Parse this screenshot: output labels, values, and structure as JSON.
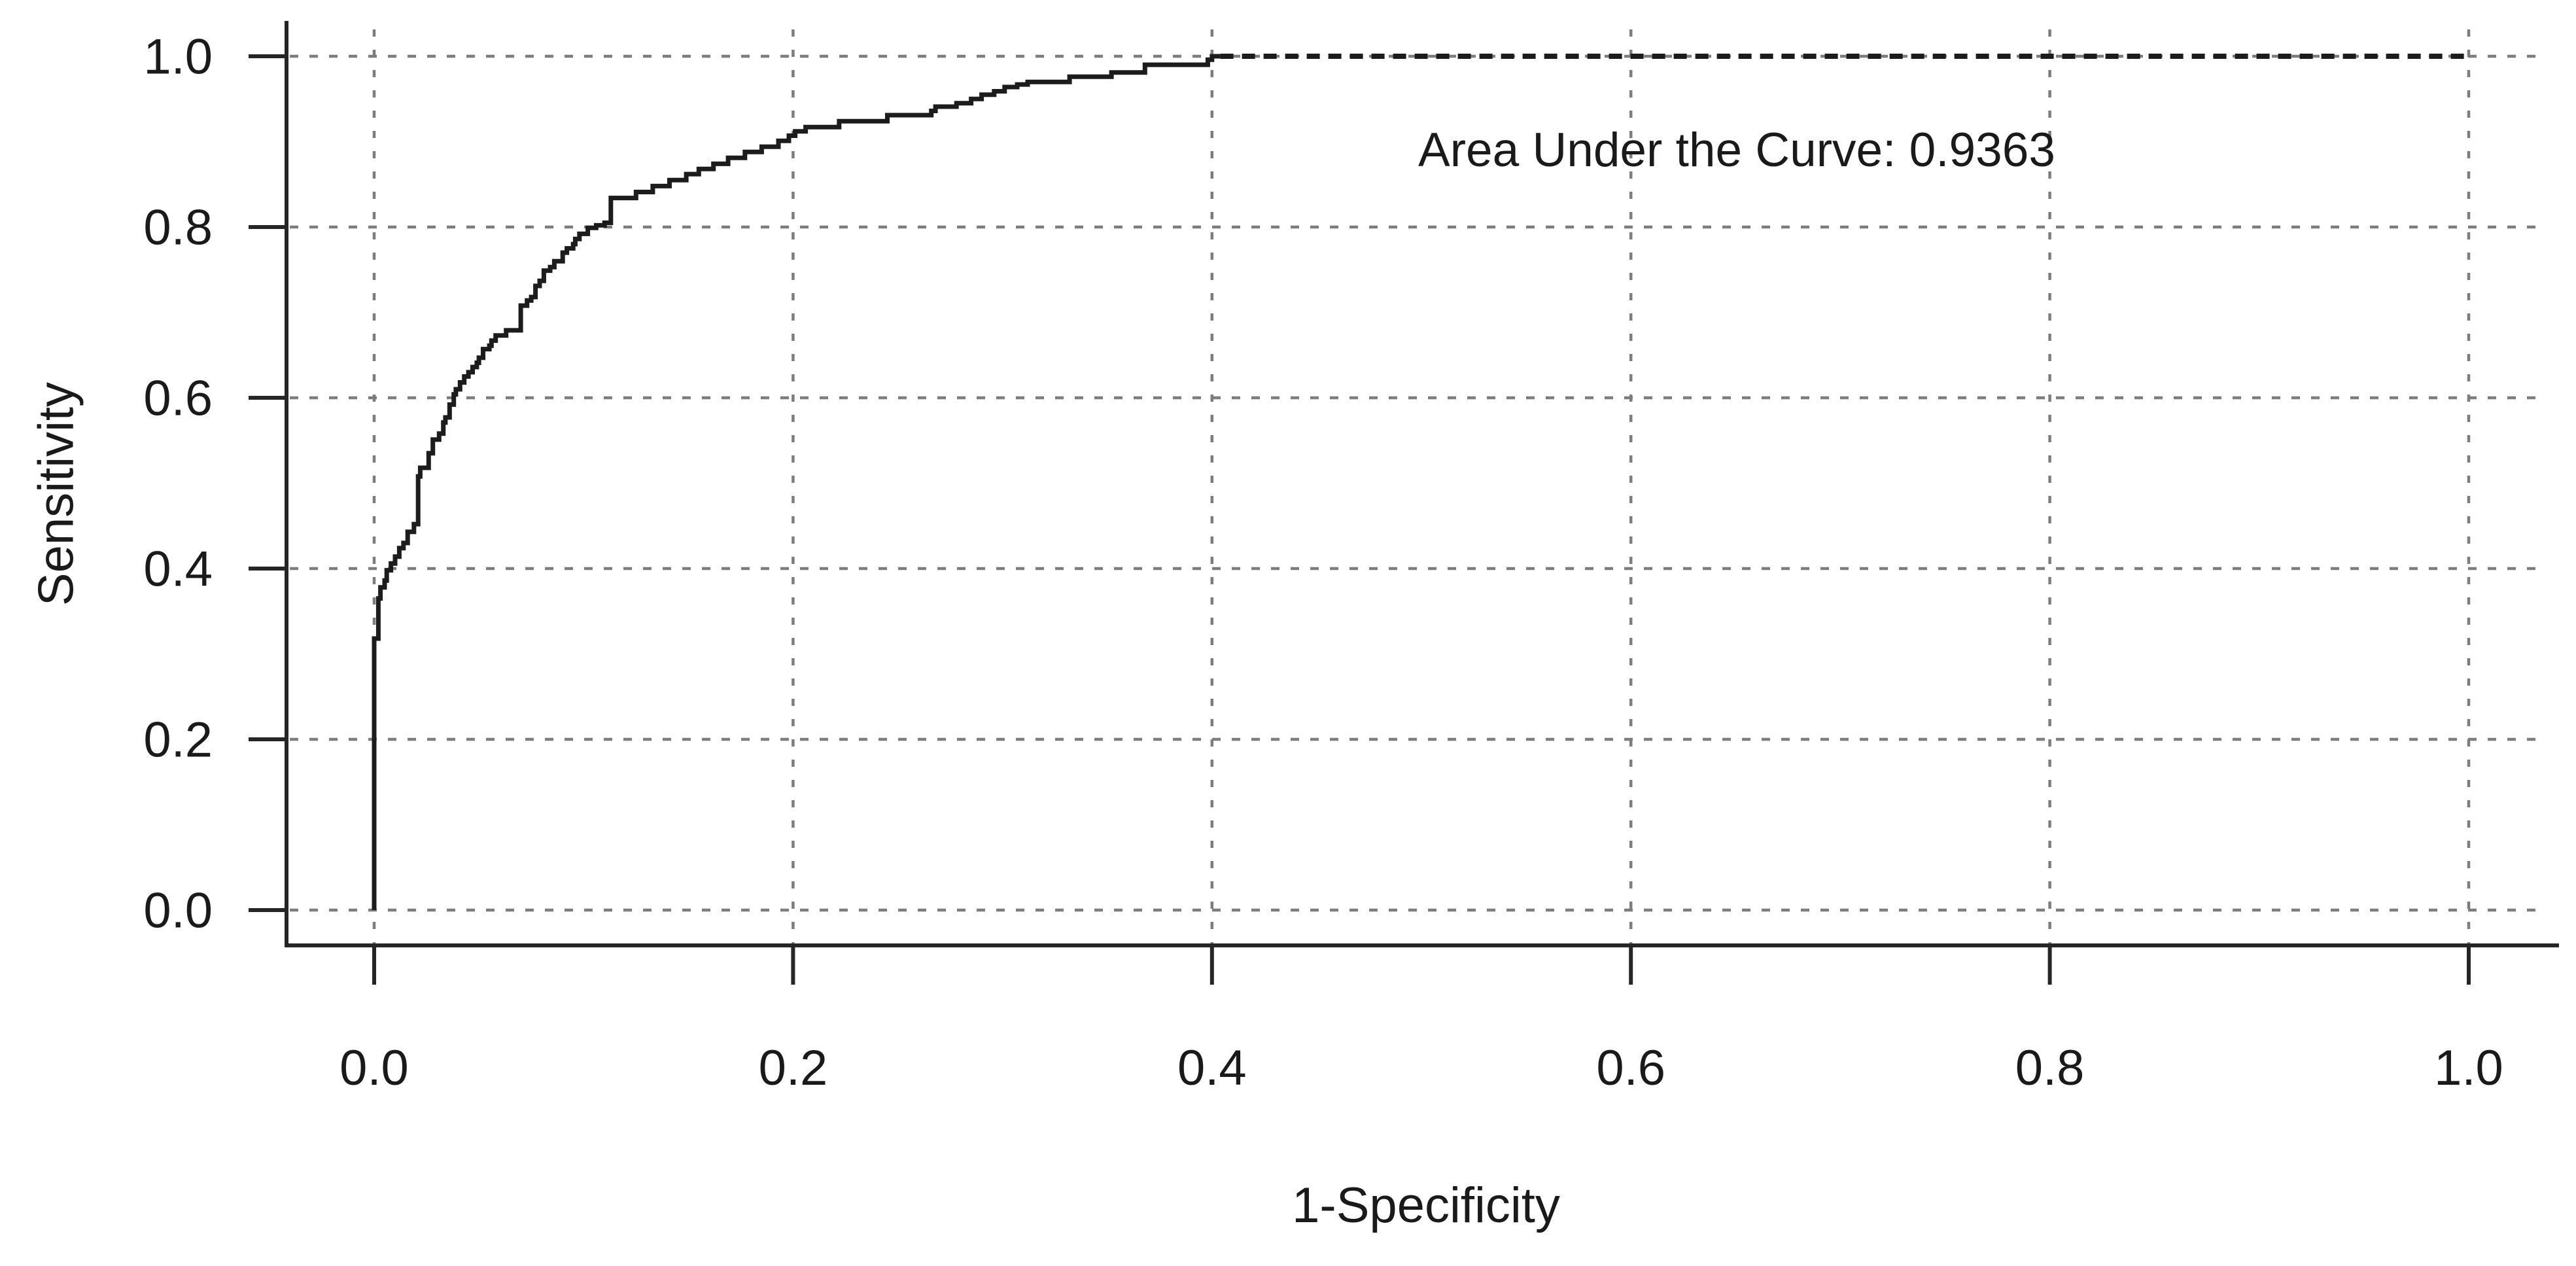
{
  "chart_data": {
    "type": "line",
    "subtype": "roc-curve",
    "title": "",
    "xlabel": "1-Specificity",
    "ylabel": "Sensitivity",
    "xlim": [
      0.0,
      1.0
    ],
    "ylim": [
      0.0,
      1.0
    ],
    "x_ticks": [
      0.0,
      0.2,
      0.4,
      0.6,
      0.8,
      1.0
    ],
    "y_ticks": [
      0.0,
      0.2,
      0.4,
      0.6,
      0.8,
      1.0
    ],
    "x_tick_labels": [
      "0.0",
      "0.2",
      "0.4",
      "0.6",
      "0.8",
      "1.0"
    ],
    "y_tick_labels": [
      "0.0",
      "0.2",
      "0.4",
      "0.6",
      "0.8",
      "1.0"
    ],
    "grid": {
      "visible": true,
      "style": "dashed",
      "color": "#7d7d7d"
    },
    "legend": {
      "visible": false
    },
    "annotation": {
      "text": "Area Under the Curve: 0.9363",
      "x": 0.65,
      "y": 0.89
    },
    "auc": 0.9363,
    "curve_color": "#1c1c1c",
    "series": [
      {
        "name": "ROC curve",
        "style": "solid-step",
        "points": [
          [
            0.0,
            0.0
          ],
          [
            0.0,
            0.31
          ],
          [
            0.002,
            0.318
          ],
          [
            0.003,
            0.365
          ],
          [
            0.005,
            0.378
          ],
          [
            0.006,
            0.386
          ],
          [
            0.008,
            0.398
          ],
          [
            0.01,
            0.406
          ],
          [
            0.012,
            0.414
          ],
          [
            0.014,
            0.424
          ],
          [
            0.016,
            0.43
          ],
          [
            0.019,
            0.443
          ],
          [
            0.021,
            0.452
          ],
          [
            0.022,
            0.508
          ],
          [
            0.026,
            0.518
          ],
          [
            0.028,
            0.535
          ],
          [
            0.031,
            0.551
          ],
          [
            0.033,
            0.558
          ],
          [
            0.034,
            0.571
          ],
          [
            0.036,
            0.577
          ],
          [
            0.038,
            0.592
          ],
          [
            0.039,
            0.604
          ],
          [
            0.041,
            0.61
          ],
          [
            0.043,
            0.618
          ],
          [
            0.045,
            0.625
          ],
          [
            0.047,
            0.63
          ],
          [
            0.049,
            0.636
          ],
          [
            0.05,
            0.641
          ],
          [
            0.052,
            0.647
          ],
          [
            0.055,
            0.657
          ],
          [
            0.056,
            0.661
          ],
          [
            0.058,
            0.667
          ],
          [
            0.063,
            0.673
          ],
          [
            0.07,
            0.679
          ],
          [
            0.07,
            0.702
          ],
          [
            0.073,
            0.708
          ],
          [
            0.075,
            0.714
          ],
          [
            0.077,
            0.718
          ],
          [
            0.079,
            0.731
          ],
          [
            0.081,
            0.737
          ],
          [
            0.084,
            0.749
          ],
          [
            0.086,
            0.753
          ],
          [
            0.09,
            0.76
          ],
          [
            0.092,
            0.77
          ],
          [
            0.095,
            0.775
          ],
          [
            0.096,
            0.78
          ],
          [
            0.098,
            0.786
          ],
          [
            0.102,
            0.792
          ],
          [
            0.106,
            0.799
          ],
          [
            0.11,
            0.802
          ],
          [
            0.113,
            0.805
          ],
          [
            0.113,
            0.831
          ],
          [
            0.125,
            0.834
          ],
          [
            0.133,
            0.841
          ],
          [
            0.141,
            0.848
          ],
          [
            0.149,
            0.855
          ],
          [
            0.155,
            0.862
          ],
          [
            0.162,
            0.868
          ],
          [
            0.169,
            0.874
          ],
          [
            0.177,
            0.881
          ],
          [
            0.185,
            0.888
          ],
          [
            0.193,
            0.894
          ],
          [
            0.198,
            0.901
          ],
          [
            0.201,
            0.907
          ],
          [
            0.206,
            0.912
          ],
          [
            0.21,
            0.917
          ],
          [
            0.222,
            0.917
          ],
          [
            0.224,
            0.924
          ],
          [
            0.245,
            0.924
          ],
          [
            0.247,
            0.931
          ],
          [
            0.266,
            0.931
          ],
          [
            0.268,
            0.936
          ],
          [
            0.278,
            0.941
          ],
          [
            0.285,
            0.945
          ],
          [
            0.29,
            0.95
          ],
          [
            0.296,
            0.955
          ],
          [
            0.301,
            0.959
          ],
          [
            0.307,
            0.964
          ],
          [
            0.312,
            0.967
          ],
          [
            0.319,
            0.97
          ],
          [
            0.332,
            0.97
          ],
          [
            0.333,
            0.976
          ],
          [
            0.352,
            0.976
          ],
          [
            0.354,
            0.981
          ],
          [
            0.368,
            0.981
          ],
          [
            0.37,
            0.99
          ],
          [
            0.398,
            0.99
          ],
          [
            0.4,
            0.996
          ],
          [
            0.404,
            1.0
          ]
        ]
      },
      {
        "name": "ROC curve upper segment",
        "style": "bold-dotted",
        "points": [
          [
            0.404,
            1.0
          ],
          [
            1.0,
            1.0
          ]
        ]
      }
    ]
  }
}
